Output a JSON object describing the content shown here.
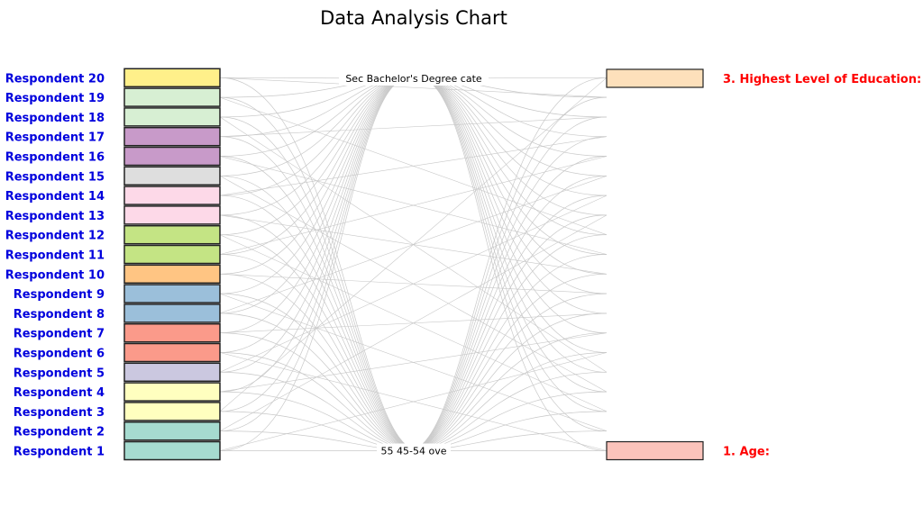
{
  "title": "Data Analysis Chart",
  "chart_data": {
    "type": "parallel-categories",
    "title": "Data Analysis Chart",
    "respondents": [
      {
        "label": "Respondent 1",
        "color": "#a6dbd0"
      },
      {
        "label": "Respondent 2",
        "color": "#a6dbd0"
      },
      {
        "label": "Respondent 3",
        "color": "#ffffbf"
      },
      {
        "label": "Respondent 4",
        "color": "#ffffbf"
      },
      {
        "label": "Respondent 5",
        "color": "#cbc8e0"
      },
      {
        "label": "Respondent 6",
        "color": "#fb9a8a"
      },
      {
        "label": "Respondent 7",
        "color": "#fb9a8a"
      },
      {
        "label": "Respondent 8",
        "color": "#9bbfda"
      },
      {
        "label": "Respondent 9",
        "color": "#9bbfda"
      },
      {
        "label": "Respondent 10",
        "color": "#ffc583"
      },
      {
        "label": "Respondent 11",
        "color": "#c4e484"
      },
      {
        "label": "Respondent 12",
        "color": "#c4e484"
      },
      {
        "label": "Respondent 13",
        "color": "#fdd9e8"
      },
      {
        "label": "Respondent 14",
        "color": "#fdd9e8"
      },
      {
        "label": "Respondent 15",
        "color": "#dedede"
      },
      {
        "label": "Respondent 16",
        "color": "#c89ac9"
      },
      {
        "label": "Respondent 17",
        "color": "#c89ac9"
      },
      {
        "label": "Respondent 18",
        "color": "#d7efd3"
      },
      {
        "label": "Respondent 19",
        "color": "#d7efd3"
      },
      {
        "label": "Respondent 20",
        "color": "#fff08a"
      }
    ],
    "questions": [
      {
        "label": "1. Age:",
        "color": "#fbc3bb"
      },
      {
        "label": "3. Highest Level of Education:",
        "color": "#fde0bb"
      }
    ],
    "middle_labels": {
      "top": "Sec Bachelor's Degree cate",
      "bottom": "55 45-54 ove"
    },
    "colors": {
      "respondent_label": "#0000dd",
      "question_label": "#ff0000",
      "link": "#c8c8c8"
    }
  }
}
